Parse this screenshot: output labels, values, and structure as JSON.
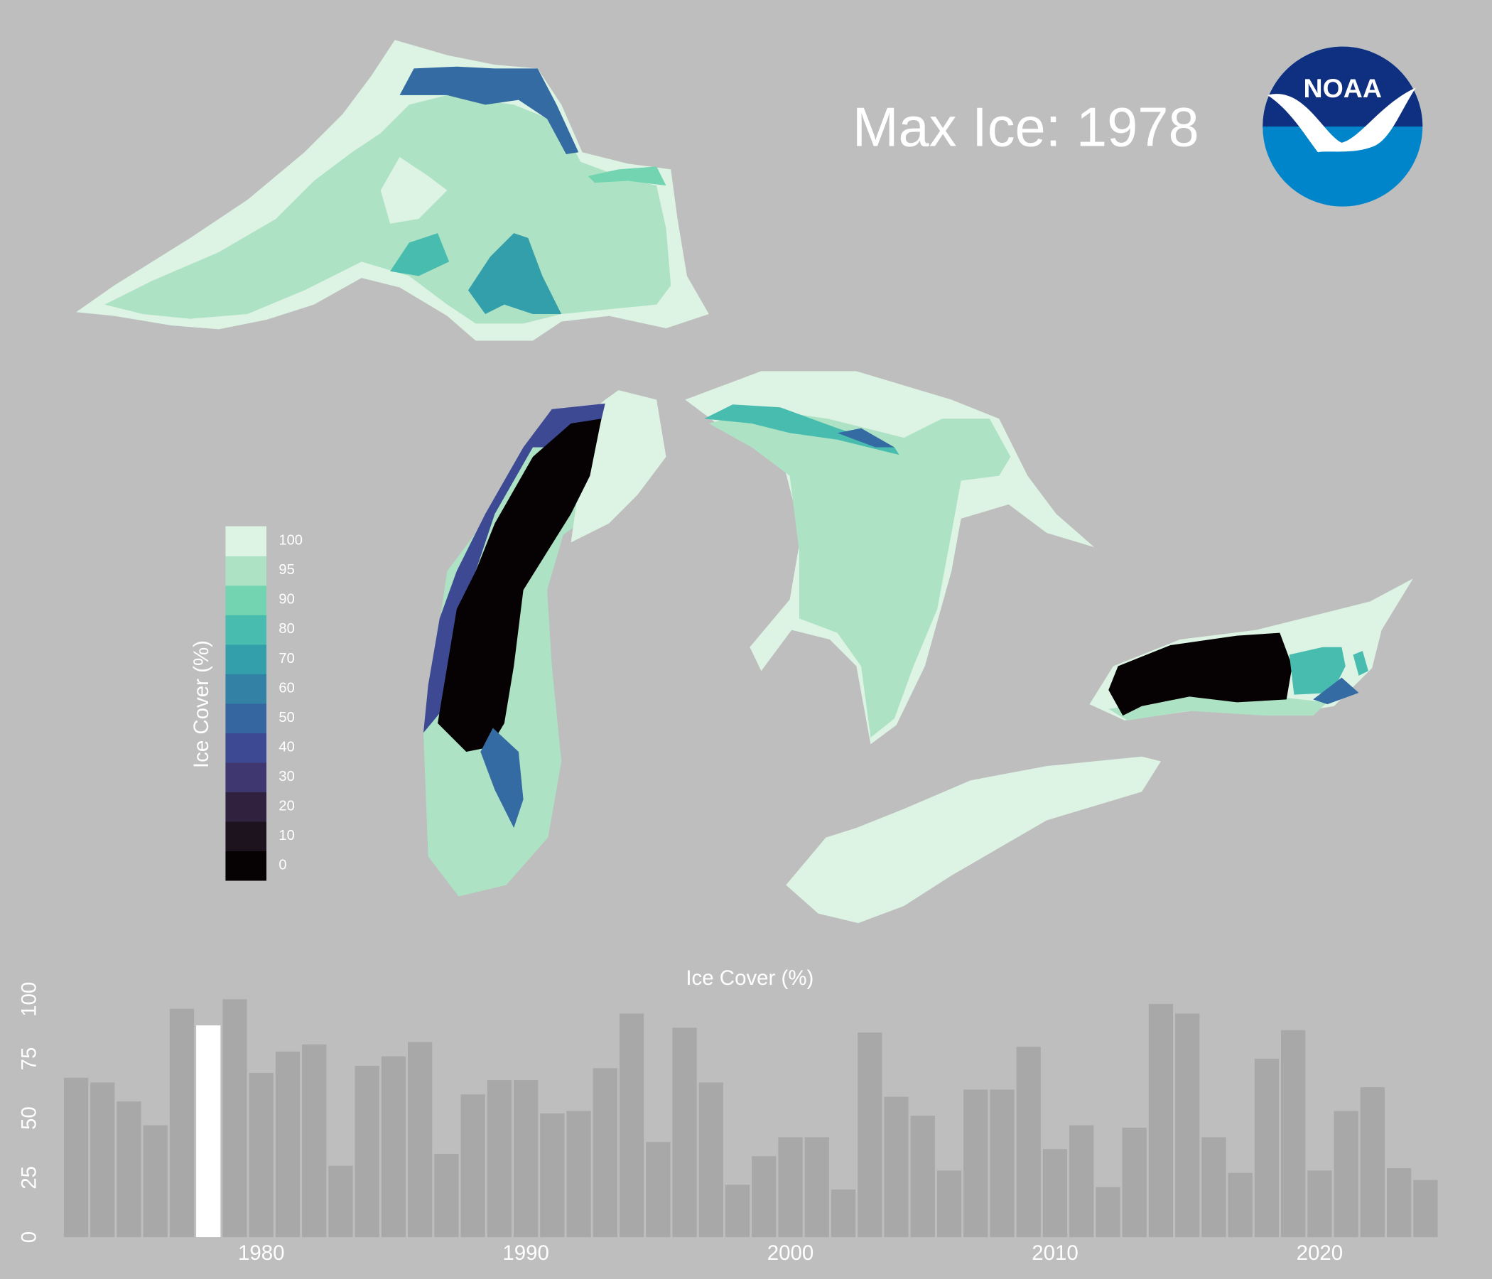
{
  "chart_data": [
    {
      "type": "map",
      "title": "Max Ice: 1978",
      "logo": "NOAA",
      "colorbar": {
        "title": "Ice Cover (%)",
        "ticks": [
          0,
          10,
          20,
          30,
          40,
          50,
          60,
          70,
          80,
          90,
          95,
          100
        ],
        "colors": [
          "#060203",
          "#1d131f",
          "#30223e",
          "#3f3770",
          "#3d4a93",
          "#3566a0",
          "#3382a5",
          "#339fab",
          "#47bcaf",
          "#72d4b0",
          "#aee2c4",
          "#ddf3e4"
        ]
      }
    },
    {
      "type": "bar",
      "title": "Ice Cover (%)",
      "color": "#a8a8a8",
      "highlight": 1978,
      "highlight_color": "#ffffff",
      "x": [
        1973,
        1974,
        1975,
        1976,
        1977,
        1978,
        1979,
        1980,
        1981,
        1982,
        1983,
        1984,
        1985,
        1986,
        1987,
        1988,
        1989,
        1990,
        1991,
        1992,
        1993,
        1994,
        1995,
        1996,
        1997,
        1998,
        1999,
        2000,
        2001,
        2002,
        2003,
        2004,
        2005,
        2006,
        2007,
        2008,
        2009,
        2010,
        2011,
        2012,
        2013,
        2014,
        2015,
        2016,
        2017,
        2018,
        2019,
        2020,
        2021,
        2022,
        2023,
        2024
      ],
      "values": [
        67,
        65,
        57,
        47,
        96,
        89,
        100,
        69,
        78,
        81,
        30,
        72,
        76,
        82,
        35,
        60,
        66,
        66,
        52,
        53,
        71,
        94,
        40,
        88,
        65,
        22,
        34,
        42,
        42,
        20,
        86,
        59,
        51,
        28,
        62,
        62,
        80,
        37,
        47,
        21,
        46,
        98,
        94,
        42,
        27,
        75,
        87,
        28,
        53,
        63,
        29,
        24
      ],
      "xlim": [
        1972.5,
        2024.5
      ],
      "xticks": [
        1980,
        1990,
        2000,
        2010,
        2020
      ],
      "ylim": [
        0,
        100
      ],
      "yticks": [
        0,
        25,
        50,
        75,
        100
      ]
    }
  ]
}
